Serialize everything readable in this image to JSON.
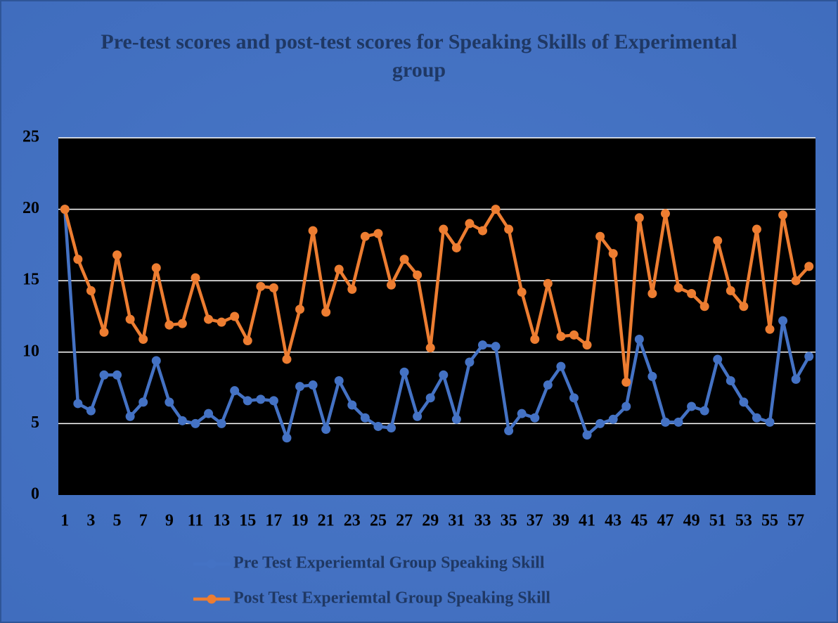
{
  "chart_data": {
    "type": "line",
    "title": "Pre-test scores and post-test scores for Speaking Skills of Experimental group",
    "categories": [
      1,
      null,
      3,
      null,
      5,
      null,
      7,
      null,
      9,
      null,
      11,
      null,
      13,
      null,
      15,
      null,
      17,
      null,
      19,
      null,
      21,
      null,
      23,
      null,
      25,
      null,
      27,
      null,
      29,
      null,
      31,
      null,
      33,
      null,
      35,
      null,
      37,
      null,
      39,
      null,
      41,
      null,
      43,
      null,
      45,
      null,
      47,
      null,
      49,
      null,
      51,
      null,
      53,
      null,
      55,
      null,
      57,
      null
    ],
    "series": [
      {
        "name": "Pre Test Experiemtal Group Speaking Skill",
        "color": "#4472c4",
        "values": [
          20,
          6.4,
          5.9,
          8.4,
          8.4,
          5.5,
          6.5,
          9.4,
          6.5,
          5.2,
          5.0,
          5.7,
          5.0,
          7.3,
          6.6,
          6.7,
          6.6,
          4.0,
          7.6,
          7.7,
          4.6,
          8.0,
          6.3,
          5.4,
          4.8,
          4.7,
          8.6,
          5.5,
          6.8,
          8.4,
          5.3,
          9.3,
          10.5,
          10.4,
          4.5,
          5.7,
          5.4,
          7.7,
          9.0,
          6.8,
          4.2,
          5.0,
          5.3,
          6.2,
          10.9,
          8.3,
          5.1,
          5.1,
          6.2,
          5.9,
          9.5,
          8.0,
          6.5,
          5.4,
          5.1,
          12.2,
          8.1,
          9.7
        ]
      },
      {
        "name": "Post Test Experiemtal Group Speaking Skill",
        "color": "#ed7d31",
        "values": [
          20,
          16.5,
          14.3,
          11.4,
          16.8,
          12.3,
          10.9,
          15.9,
          11.9,
          12.0,
          15.2,
          12.3,
          12.1,
          12.5,
          10.8,
          14.6,
          14.5,
          9.5,
          13.0,
          18.5,
          12.8,
          15.8,
          14.4,
          18.1,
          18.3,
          14.7,
          16.5,
          15.4,
          10.3,
          18.6,
          17.3,
          19.0,
          18.5,
          20.0,
          18.6,
          14.2,
          10.9,
          14.8,
          11.1,
          11.2,
          10.5,
          18.1,
          16.9,
          7.9,
          19.4,
          14.1,
          19.7,
          14.5,
          14.1,
          13.2,
          17.8,
          14.3,
          13.2,
          18.6,
          11.6,
          19.6,
          15.0,
          16.0
        ]
      }
    ],
    "ylim": [
      0,
      25
    ],
    "yticks": [
      0,
      5,
      10,
      15,
      20,
      25
    ],
    "grid": true,
    "legend": "bottom"
  }
}
